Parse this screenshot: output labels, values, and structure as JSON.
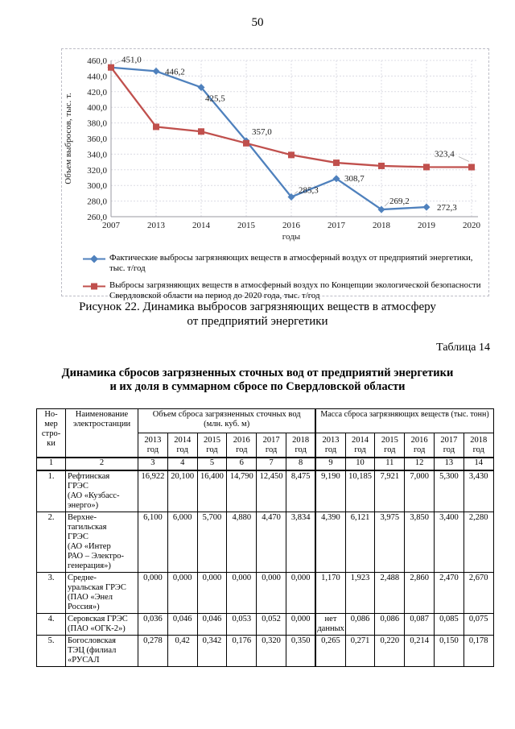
{
  "page": {
    "number": "50"
  },
  "figure": {
    "caption_line1": "Рисунок 22. Динамика выбросов загрязняющих веществ в атмосферу",
    "caption_line2": "от предприятий энергетики"
  },
  "chart_data": {
    "type": "line",
    "categories": [
      "2007",
      "2013",
      "2014",
      "2015",
      "2016",
      "2017",
      "2018",
      "2019",
      "2020"
    ],
    "series": [
      {
        "name": "Фактические выбросы загрязняющих веществ в атмосферный воздух от предприятий энергетики,\nтыс. т/год",
        "color": "#4f81bd",
        "marker": "diamond",
        "values": [
          451.0,
          446.2,
          425.5,
          357.0,
          285.3,
          308.7,
          269.2,
          272.3,
          null
        ],
        "labels": [
          "451,0",
          "446,2",
          "425,5",
          "357,0",
          "285,3",
          "308,7",
          "269,2",
          "272,3",
          ""
        ]
      },
      {
        "name": "Выбросы загрязняющих веществ в атмосферный воздух по Концепции экологической безопасности\nСвердловской области на период до 2020 года, тыс. т/год",
        "color": "#c0504d",
        "marker": "square",
        "values": [
          451.0,
          375.0,
          369.0,
          354.0,
          339.0,
          329.0,
          325.0,
          323.5,
          323.4
        ],
        "labels": [
          "",
          "",
          "",
          "",
          "",
          "",
          "",
          "",
          "323,4"
        ]
      }
    ],
    "xlabel": "годы",
    "ylabel": "Объем выбросов, тыс. т.",
    "ylim": [
      260,
      460
    ],
    "ytick_step": 20,
    "grid": true,
    "legend_position": "bottom"
  },
  "table_section": {
    "label": "Таблица 14",
    "title_line1": "Динамика сбросов загрязненных сточных вод от предприятий энергетики",
    "title_line2": "и их доля в суммарном сбросе по Свердловской области",
    "header": {
      "row_num": "Но-\nмер\nстро-\nки",
      "station": "Наименование\nэлектростанции",
      "volume_group": "Объем сброса загрязненных сточных вод\n(млн. куб. м)",
      "mass_group": "Масса сброса загрязняющих веществ (тыс. тонн)",
      "years": [
        "2013 год",
        "2014 год",
        "2015 год",
        "2016 год",
        "2017 год",
        "2018 год"
      ]
    },
    "column_numbers": [
      "1",
      "2",
      "3",
      "4",
      "5",
      "6",
      "7",
      "8",
      "9",
      "10",
      "11",
      "12",
      "13",
      "14"
    ],
    "rows": [
      {
        "num": "1.",
        "name": "Рефтинская\nГРЭС\n(АО «Кузбасс-\nэнерго»)",
        "volume": [
          "16,922",
          "20,100",
          "16,400",
          "14,790",
          "12,450",
          "8,475"
        ],
        "mass": [
          "9,190",
          "10,185",
          "7,921",
          "7,000",
          "5,300",
          "3,430"
        ]
      },
      {
        "num": "2.",
        "name": "Верхне-\nтагильская\nГРЭС\n(АО «Интер\nРАО – Электро-\nгенерация»)",
        "volume": [
          "6,100",
          "6,000",
          "5,700",
          "4,880",
          "4,470",
          "3,834"
        ],
        "mass": [
          "4,390",
          "6,121",
          "3,975",
          "3,850",
          "3,400",
          "2,280"
        ]
      },
      {
        "num": "3.",
        "name": "Средне-\nуральская ГРЭС\n(ПАО «Энел\nРоссия»)",
        "volume": [
          "0,000",
          "0,000",
          "0,000",
          "0,000",
          "0,000",
          "0,000"
        ],
        "mass": [
          "1,170",
          "1,923",
          "2,488",
          "2,860",
          "2,470",
          "2,670"
        ]
      },
      {
        "num": "4.",
        "name": "Серовская ГРЭС\n(ПАО «ОГК-2»)",
        "volume": [
          "0,036",
          "0,046",
          "0,046",
          "0,053",
          "0,052",
          "0,000"
        ],
        "mass": [
          "нет данных",
          "0,086",
          "0,086",
          "0,087",
          "0,085",
          "0,075"
        ]
      },
      {
        "num": "5.",
        "name": "Богословская\nТЭЦ (филиал\n«РУСАЛ",
        "volume": [
          "0,278",
          "0,42",
          "0,342",
          "0,176",
          "0,320",
          "0,350"
        ],
        "mass": [
          "0,265",
          "0,271",
          "0,220",
          "0,214",
          "0,150",
          "0,178"
        ]
      }
    ]
  }
}
